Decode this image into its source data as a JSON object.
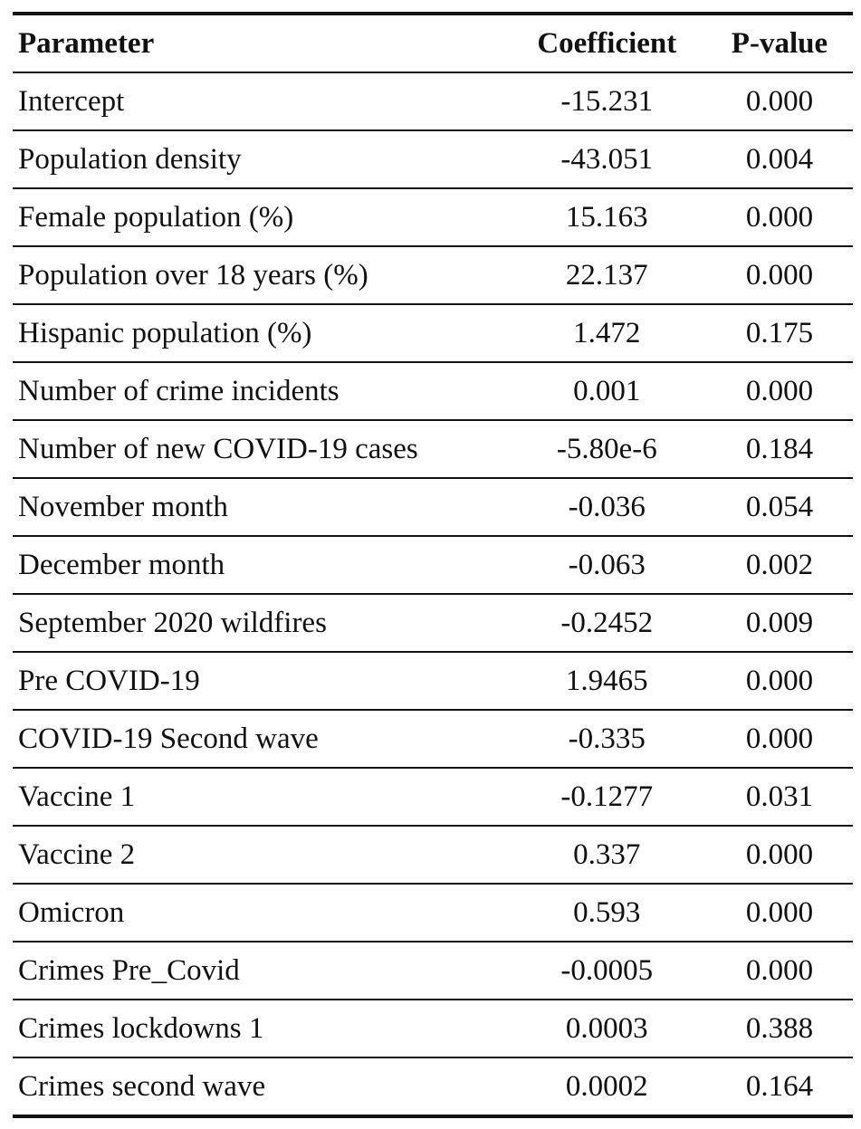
{
  "table": {
    "headers": {
      "parameter": "Parameter",
      "coefficient": "Coefficient",
      "pvalue": "P-value"
    },
    "rows": [
      {
        "parameter": "Intercept",
        "coefficient": "-15.231",
        "pvalue": "0.000"
      },
      {
        "parameter": "Population density",
        "coefficient": "-43.051",
        "pvalue": "0.004"
      },
      {
        "parameter": "Female population (%)",
        "coefficient": "15.163",
        "pvalue": "0.000"
      },
      {
        "parameter": "Population over 18 years (%)",
        "coefficient": "22.137",
        "pvalue": "0.000"
      },
      {
        "parameter": "Hispanic population (%)",
        "coefficient": "1.472",
        "pvalue": "0.175"
      },
      {
        "parameter": "Number of crime incidents",
        "coefficient": "0.001",
        "pvalue": "0.000"
      },
      {
        "parameter": "Number of new COVID-19 cases",
        "coefficient": "-5.80e-6",
        "pvalue": "0.184"
      },
      {
        "parameter": "November month",
        "coefficient": "-0.036",
        "pvalue": "0.054"
      },
      {
        "parameter": "December month",
        "coefficient": "-0.063",
        "pvalue": "0.002"
      },
      {
        "parameter": "September 2020 wildfires",
        "coefficient": "-0.2452",
        "pvalue": "0.009"
      },
      {
        "parameter": "Pre COVID-19",
        "coefficient": "1.9465",
        "pvalue": "0.000"
      },
      {
        "parameter": "COVID-19 Second wave",
        "coefficient": "-0.335",
        "pvalue": "0.000"
      },
      {
        "parameter": "Vaccine 1",
        "coefficient": "-0.1277",
        "pvalue": "0.031"
      },
      {
        "parameter": "Vaccine 2",
        "coefficient": "0.337",
        "pvalue": "0.000"
      },
      {
        "parameter": "Omicron",
        "coefficient": "0.593",
        "pvalue": "0.000"
      },
      {
        "parameter": "Crimes Pre_Covid",
        "coefficient": "-0.0005",
        "pvalue": "0.000"
      },
      {
        "parameter": "Crimes lockdowns 1",
        "coefficient": "0.0003",
        "pvalue": "0.388"
      },
      {
        "parameter": "Crimes second wave",
        "coefficient": "0.0002",
        "pvalue": "0.164"
      }
    ]
  }
}
